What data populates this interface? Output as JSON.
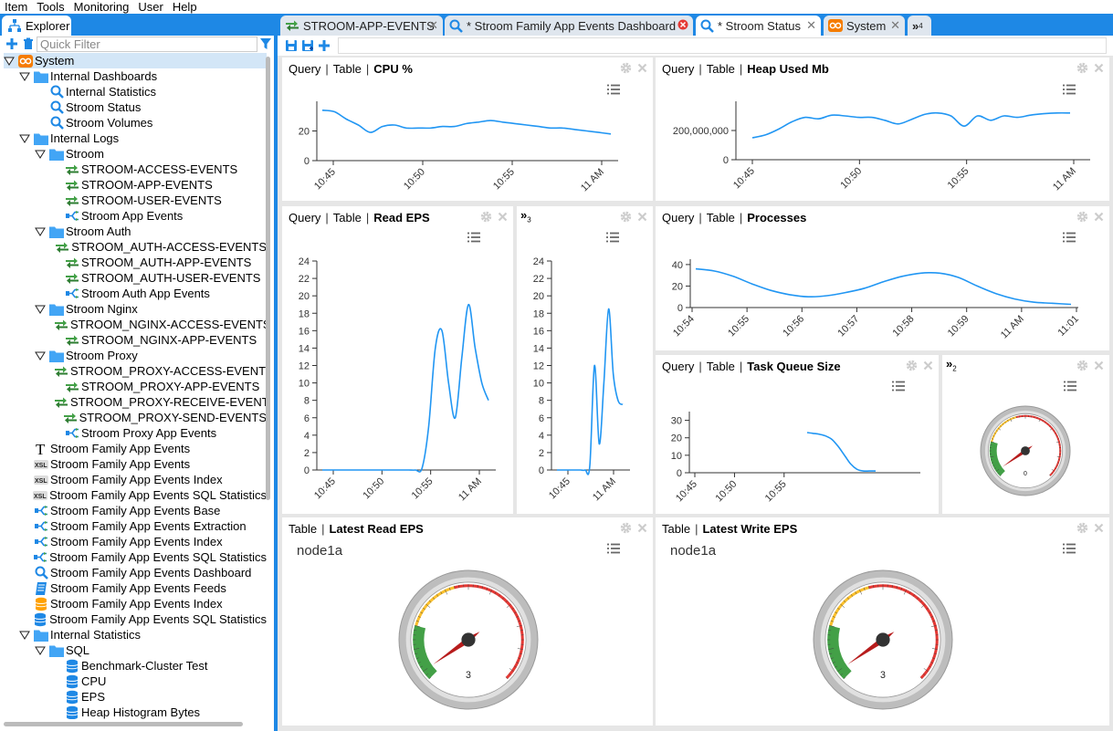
{
  "menu": [
    "Item",
    "Tools",
    "Monitoring",
    "User",
    "Help"
  ],
  "explorer": {
    "tab_label": "Explorer",
    "filter_placeholder": "Quick Filter",
    "tree": [
      {
        "label": "System",
        "depth": 0,
        "toggle": "open",
        "icon": "system-icon",
        "selected": true
      },
      {
        "label": "Internal Dashboards",
        "depth": 1,
        "toggle": "open",
        "icon": "folder-icon"
      },
      {
        "label": "Internal Statistics",
        "depth": 2,
        "toggle": "none",
        "icon": "search-icon"
      },
      {
        "label": "Stroom Status",
        "depth": 2,
        "toggle": "none",
        "icon": "search-icon"
      },
      {
        "label": "Stroom Volumes",
        "depth": 2,
        "toggle": "none",
        "icon": "search-icon"
      },
      {
        "label": "Internal Logs",
        "depth": 1,
        "toggle": "open",
        "icon": "folder-icon"
      },
      {
        "label": "Stroom",
        "depth": 2,
        "toggle": "open",
        "icon": "folder-icon"
      },
      {
        "label": "STROOM-ACCESS-EVENTS",
        "depth": 3,
        "toggle": "none",
        "icon": "feed-icon"
      },
      {
        "label": "STROOM-APP-EVENTS",
        "depth": 3,
        "toggle": "none",
        "icon": "feed-icon"
      },
      {
        "label": "STROOM-USER-EVENTS",
        "depth": 3,
        "toggle": "none",
        "icon": "feed-icon"
      },
      {
        "label": "Stroom App Events",
        "depth": 3,
        "toggle": "none",
        "icon": "pipeline-icon"
      },
      {
        "label": "Stroom Auth",
        "depth": 2,
        "toggle": "open",
        "icon": "folder-icon"
      },
      {
        "label": "STROOM_AUTH-ACCESS-EVENTS",
        "depth": 3,
        "toggle": "none",
        "icon": "feed-icon"
      },
      {
        "label": "STROOM_AUTH-APP-EVENTS",
        "depth": 3,
        "toggle": "none",
        "icon": "feed-icon"
      },
      {
        "label": "STROOM_AUTH-USER-EVENTS",
        "depth": 3,
        "toggle": "none",
        "icon": "feed-icon"
      },
      {
        "label": "Stroom Auth App Events",
        "depth": 3,
        "toggle": "none",
        "icon": "pipeline-icon"
      },
      {
        "label": "Stroom Nginx",
        "depth": 2,
        "toggle": "open",
        "icon": "folder-icon"
      },
      {
        "label": "STROOM_NGINX-ACCESS-EVENTS",
        "depth": 3,
        "toggle": "none",
        "icon": "feed-icon"
      },
      {
        "label": "STROOM_NGINX-APP-EVENTS",
        "depth": 3,
        "toggle": "none",
        "icon": "feed-icon"
      },
      {
        "label": "Stroom Proxy",
        "depth": 2,
        "toggle": "open",
        "icon": "folder-icon"
      },
      {
        "label": "STROOM_PROXY-ACCESS-EVENTS",
        "depth": 3,
        "toggle": "none",
        "icon": "feed-icon"
      },
      {
        "label": "STROOM_PROXY-APP-EVENTS",
        "depth": 3,
        "toggle": "none",
        "icon": "feed-icon"
      },
      {
        "label": "STROOM_PROXY-RECEIVE-EVENTS",
        "depth": 3,
        "toggle": "none",
        "icon": "feed-icon"
      },
      {
        "label": "STROOM_PROXY-SEND-EVENTS",
        "depth": 3,
        "toggle": "none",
        "icon": "feed-icon"
      },
      {
        "label": "Stroom Proxy App Events",
        "depth": 3,
        "toggle": "none",
        "icon": "pipeline-icon"
      },
      {
        "label": "Stroom Family App Events",
        "depth": 1,
        "toggle": "none",
        "icon": "text-converter-icon"
      },
      {
        "label": "Stroom Family App Events",
        "depth": 1,
        "toggle": "none",
        "icon": "xslt-icon"
      },
      {
        "label": "Stroom Family App Events Index",
        "depth": 1,
        "toggle": "none",
        "icon": "xslt-icon"
      },
      {
        "label": "Stroom Family App Events SQL Statistics",
        "depth": 1,
        "toggle": "none",
        "icon": "xslt-icon"
      },
      {
        "label": "Stroom Family App Events Base",
        "depth": 1,
        "toggle": "none",
        "icon": "pipeline-icon"
      },
      {
        "label": "Stroom Family App Events Extraction",
        "depth": 1,
        "toggle": "none",
        "icon": "pipeline-icon"
      },
      {
        "label": "Stroom Family App Events Index",
        "depth": 1,
        "toggle": "none",
        "icon": "pipeline-icon"
      },
      {
        "label": "Stroom Family App Events SQL Statistics",
        "depth": 1,
        "toggle": "none",
        "icon": "pipeline-icon"
      },
      {
        "label": "Stroom Family App Events Dashboard",
        "depth": 1,
        "toggle": "none",
        "icon": "search-icon"
      },
      {
        "label": "Stroom Family App Events Feeds",
        "depth": 1,
        "toggle": "none",
        "icon": "dictionary-icon"
      },
      {
        "label": "Stroom Family App Events Index",
        "depth": 1,
        "toggle": "none",
        "icon": "index-icon"
      },
      {
        "label": "Stroom Family App Events SQL Statistics",
        "depth": 1,
        "toggle": "none",
        "icon": "statistics-icon"
      },
      {
        "label": "Internal Statistics",
        "depth": 1,
        "toggle": "open",
        "icon": "folder-icon"
      },
      {
        "label": "SQL",
        "depth": 2,
        "toggle": "open",
        "icon": "folder-icon"
      },
      {
        "label": "Benchmark-Cluster Test",
        "depth": 3,
        "toggle": "none",
        "icon": "statistics-icon"
      },
      {
        "label": "CPU",
        "depth": 3,
        "toggle": "none",
        "icon": "statistics-icon"
      },
      {
        "label": "EPS",
        "depth": 3,
        "toggle": "none",
        "icon": "statistics-icon"
      },
      {
        "label": "Heap Histogram Bytes",
        "depth": 3,
        "toggle": "none",
        "icon": "statistics-icon"
      }
    ]
  },
  "tabs": [
    {
      "label": "STROOM-APP-EVENTS",
      "icon": "feed-icon",
      "active": false,
      "close": "x"
    },
    {
      "label": "* Stroom Family App Events Dashboard",
      "icon": "search-icon",
      "active": false,
      "close": "error"
    },
    {
      "label": "* Stroom Status",
      "icon": "search-icon",
      "active": true,
      "close": "x"
    },
    {
      "label": "System",
      "icon": "system-icon",
      "active": false,
      "close": "x"
    }
  ],
  "tabs_overflow": {
    "label": "»",
    "count": "4"
  },
  "colors": {
    "accent": "#1e88e5",
    "line": "#2196f3",
    "folder": "#42a5f5",
    "feed": "#43a047"
  },
  "panels": {
    "cpu": {
      "tab_query": "Query",
      "tab_table": "Table",
      "title": "CPU %"
    },
    "heap": {
      "tab_query": "Query",
      "tab_table": "Table",
      "title": "Heap Used Mb"
    },
    "read_eps": {
      "tab_query": "Query",
      "tab_table": "Table",
      "title": "Read EPS"
    },
    "hidden3": {
      "label": "»",
      "count": "3"
    },
    "processes": {
      "tab_query": "Query",
      "tab_table": "Table",
      "title": "Processes"
    },
    "task_queue": {
      "tab_query": "Query",
      "tab_table": "Table",
      "title": "Task Queue Size"
    },
    "hidden2": {
      "label": "»",
      "count": "2",
      "gauge_value": "0"
    },
    "latest_read": {
      "tab_table": "Table",
      "title": "Latest Read EPS",
      "node": "node1a",
      "gauge_value": "3"
    },
    "latest_write": {
      "tab_table": "Table",
      "title": "Latest Write EPS",
      "node": "node1a",
      "gauge_value": "3"
    }
  },
  "chart_data": [
    {
      "id": "cpu",
      "type": "line",
      "x_labels": [
        "10:45",
        "10:50",
        "10:55",
        "11 AM"
      ],
      "y_ticks": [
        0,
        20
      ],
      "ylim": [
        0,
        40
      ],
      "x": [
        0,
        1,
        2,
        3,
        4,
        5,
        6,
        7,
        8,
        9,
        10,
        11,
        12,
        13,
        14,
        15,
        16,
        17,
        18,
        19,
        20,
        21,
        22,
        23,
        24
      ],
      "y": [
        34,
        33,
        28,
        24,
        19,
        23,
        24,
        22,
        22,
        22,
        23,
        23,
        25,
        26,
        27,
        26,
        25,
        24,
        23,
        22,
        22,
        21,
        20,
        19,
        18
      ]
    },
    {
      "id": "heap",
      "type": "line",
      "x_labels": [
        "10:45",
        "10:50",
        "10:55",
        "11 AM"
      ],
      "y_ticks": [
        0,
        200000000
      ],
      "y_tick_labels": [
        "0",
        "200,000,000"
      ],
      "ylim": [
        0,
        400000000
      ],
      "x": [
        0,
        1,
        2,
        3,
        4,
        5,
        6,
        7,
        8,
        9,
        10,
        11,
        12,
        13,
        14,
        15,
        16,
        17,
        18,
        19,
        20,
        21,
        22,
        23,
        24
      ],
      "y": [
        150000000,
        170000000,
        210000000,
        260000000,
        290000000,
        280000000,
        305000000,
        300000000,
        290000000,
        290000000,
        270000000,
        245000000,
        275000000,
        310000000,
        320000000,
        300000000,
        230000000,
        300000000,
        270000000,
        300000000,
        290000000,
        305000000,
        315000000,
        320000000,
        320000000
      ]
    },
    {
      "id": "read_eps",
      "type": "line",
      "x_labels": [
        "10:45",
        "10:50",
        "10:55",
        "11 AM"
      ],
      "y_ticks": [
        0,
        2,
        4,
        6,
        8,
        10,
        12,
        14,
        16,
        18,
        20,
        22,
        24
      ],
      "ylim": [
        0,
        24
      ],
      "x": [
        0,
        1,
        2,
        3,
        4,
        5,
        6,
        7,
        8,
        9,
        10,
        11,
        12,
        13,
        14,
        15,
        16,
        17,
        18,
        19,
        20,
        21,
        22,
        23,
        24,
        25
      ],
      "y": [
        0,
        0,
        0,
        0,
        0,
        0,
        0,
        0,
        0,
        0,
        0,
        0,
        0,
        0,
        0,
        0.2,
        5,
        14,
        16,
        10,
        6,
        13,
        19,
        14,
        10,
        8
      ]
    },
    {
      "id": "hidden3",
      "type": "line",
      "x_labels": [
        "10:45",
        "11 AM"
      ],
      "y_ticks": [
        0,
        2,
        4,
        6,
        8,
        10,
        12,
        14,
        16,
        18,
        20,
        22,
        24
      ],
      "ylim": [
        0,
        24
      ],
      "x": [
        0,
        1,
        2,
        3,
        4,
        5,
        6,
        7,
        8,
        9,
        10,
        11,
        12,
        13,
        14
      ],
      "y": [
        0,
        0,
        0,
        0,
        0,
        0,
        0,
        0.5,
        12,
        3,
        10,
        18.5,
        11,
        8,
        7.5
      ]
    },
    {
      "id": "processes",
      "type": "line",
      "x_labels": [
        "10:54",
        "10:55",
        "10:56",
        "10:57",
        "10:58",
        "10:59",
        "11 AM",
        "11:01"
      ],
      "y_ticks": [
        0,
        20,
        40
      ],
      "ylim": [
        0,
        45
      ],
      "x": [
        0,
        1,
        2,
        3,
        4,
        5,
        6,
        7,
        8,
        9,
        10,
        11,
        12,
        13,
        14,
        15,
        16,
        17,
        18,
        19,
        20
      ],
      "y": [
        36,
        34,
        29,
        22,
        16,
        12,
        10,
        11,
        14,
        18,
        24,
        29,
        32,
        32,
        28,
        20,
        13,
        8,
        5,
        4,
        3
      ]
    },
    {
      "id": "task_queue",
      "type": "line",
      "x_labels": [
        "10:45",
        "10:50",
        "10:55"
      ],
      "y_ticks": [
        0,
        10,
        20,
        30
      ],
      "ylim": [
        0,
        35
      ],
      "x": [
        0,
        1,
        2,
        3,
        4,
        5,
        6,
        7,
        8,
        9,
        10,
        11
      ],
      "y": [
        23,
        22.5,
        22,
        21,
        19,
        15,
        10,
        5,
        2,
        1,
        1,
        1
      ]
    }
  ]
}
